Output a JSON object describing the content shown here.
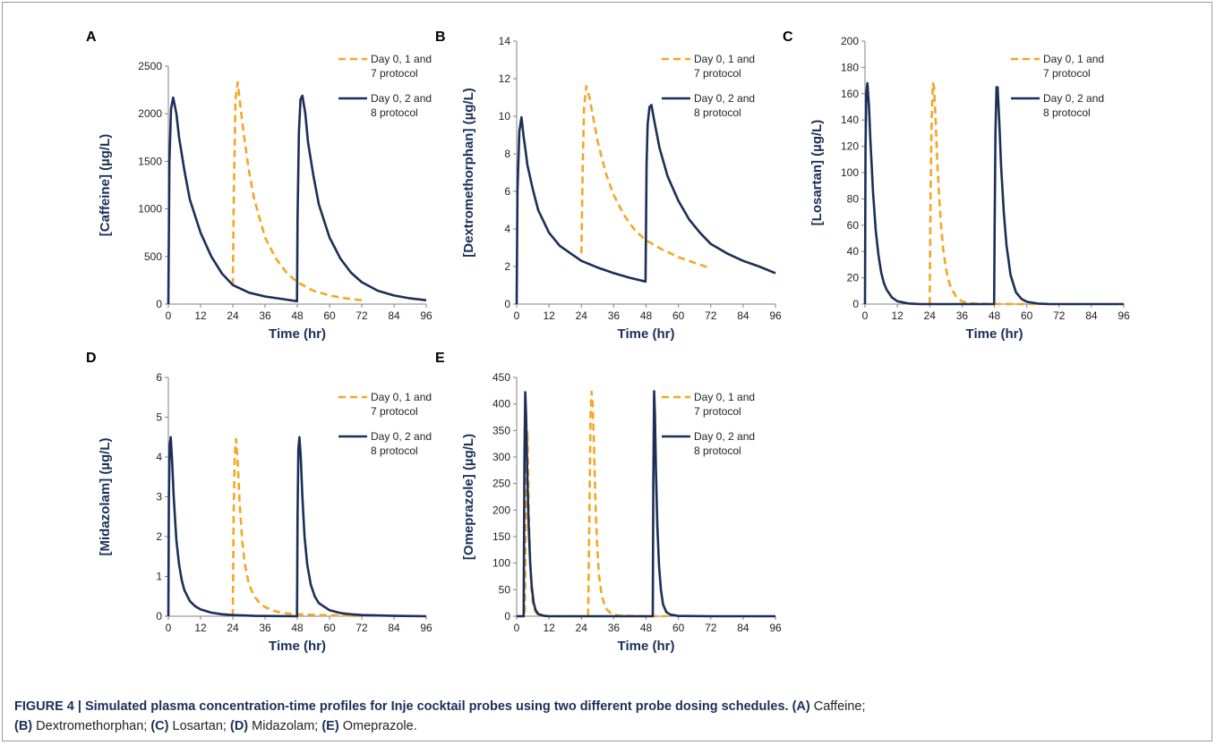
{
  "figure": {
    "caption_title": "FIGURE 4 | Simulated plasma concentration-time profiles for Inje cocktail probes using two different probe dosing schedules.",
    "caption_items": [
      {
        "label": "(A)",
        "text": "Caffeine;"
      },
      {
        "label": "(B)",
        "text": "Dextromethorphan;"
      },
      {
        "label": "(C)",
        "text": "Losartan;"
      },
      {
        "label": "(D)",
        "text": "Midazolam;"
      },
      {
        "label": "(E)",
        "text": "Omeprazole."
      }
    ]
  },
  "colors": {
    "series1": "#f5a623",
    "series2": "#1b2f58",
    "axis": "#808080",
    "text": "#222222"
  },
  "chart_data": [
    {
      "panel": "A",
      "type": "line",
      "xlabel": "Time (hr)",
      "ylabel": "[Caffeine] (µg/L)",
      "xlim": [
        0,
        96
      ],
      "ylim": [
        0,
        2500
      ],
      "xticks": [
        0,
        12,
        24,
        36,
        48,
        60,
        72,
        84,
        96
      ],
      "yticks": [
        0,
        500,
        1000,
        1500,
        2000,
        2500
      ],
      "legend": "top-right",
      "series": [
        {
          "name": "Day 0, 1 and 7 protocol",
          "style": "dashed",
          "x": [
            24,
            24.4,
            25,
            25.8,
            28,
            30,
            32,
            36,
            40,
            44,
            48,
            54,
            60,
            66,
            72
          ],
          "y": [
            200,
            1200,
            2150,
            2330,
            1800,
            1400,
            1100,
            700,
            480,
            330,
            230,
            140,
            90,
            60,
            40
          ]
        },
        {
          "name": "Day 0, 2 and 8 protocol",
          "style": "solid",
          "x": [
            0,
            0.4,
            1,
            1.8,
            3,
            4,
            6,
            8,
            12,
            16,
            20,
            24,
            30,
            36,
            42,
            47.9,
            48.1,
            48.6,
            49.2,
            49.9,
            51,
            52,
            54,
            56,
            60,
            64,
            68,
            72,
            78,
            84,
            90,
            96
          ],
          "y": [
            0,
            1500,
            2050,
            2170,
            2000,
            1750,
            1400,
            1100,
            750,
            500,
            320,
            200,
            120,
            80,
            55,
            30,
            900,
            1800,
            2150,
            2190,
            2000,
            1700,
            1350,
            1050,
            700,
            480,
            330,
            230,
            140,
            90,
            60,
            40
          ]
        }
      ]
    },
    {
      "panel": "B",
      "type": "line",
      "xlabel": "Time (hr)",
      "ylabel": "[Dextromethorphan] (µg/L)",
      "xlim": [
        0,
        96
      ],
      "ylim": [
        0,
        14
      ],
      "xticks": [
        0,
        12,
        24,
        36,
        48,
        60,
        72,
        84,
        96
      ],
      "yticks": [
        0,
        2,
        4,
        6,
        8,
        10,
        12,
        14
      ],
      "legend": "top-right",
      "series": [
        {
          "name": "Day 0, 1 and 7 protocol",
          "style": "dashed",
          "x": [
            24,
            24.5,
            25,
            25.8,
            27,
            30,
            33,
            36,
            40,
            44,
            48,
            54,
            60,
            66,
            72
          ],
          "y": [
            2.7,
            7.5,
            10.5,
            11.6,
            11.0,
            8.7,
            7.0,
            5.8,
            4.7,
            3.9,
            3.4,
            2.9,
            2.5,
            2.2,
            1.9
          ]
        },
        {
          "name": "Day 0, 2 and 8 protocol",
          "style": "solid",
          "x": [
            0,
            0.3,
            1,
            1.8,
            2.6,
            3.2,
            4,
            6,
            8,
            12,
            16,
            20,
            24,
            30,
            36,
            42,
            47.8,
            48.2,
            48.6,
            49.3,
            50,
            51,
            53,
            56,
            60,
            64,
            68,
            72,
            78,
            84,
            90,
            96
          ],
          "y": [
            0,
            6,
            9.2,
            9.95,
            8.9,
            8.3,
            7.4,
            6.1,
            5.0,
            3.8,
            3.1,
            2.7,
            2.3,
            1.95,
            1.65,
            1.4,
            1.2,
            7.5,
            9.6,
            10.5,
            10.6,
            9.8,
            8.3,
            6.8,
            5.5,
            4.5,
            3.8,
            3.2,
            2.7,
            2.3,
            2.0,
            1.65
          ]
        }
      ]
    },
    {
      "panel": "C",
      "type": "line",
      "xlabel": "Time (hr)",
      "ylabel": "[Losartan] (µg/L)",
      "xlim": [
        0,
        96
      ],
      "ylim": [
        0,
        200
      ],
      "xticks": [
        0,
        12,
        24,
        36,
        48,
        60,
        72,
        84,
        96
      ],
      "yticks": [
        0,
        20,
        40,
        60,
        80,
        100,
        120,
        140,
        160,
        180,
        200
      ],
      "legend": "top-right",
      "series": [
        {
          "name": "Day 0, 1 and 7 protocol",
          "style": "dashed",
          "x": [
            24,
            24.3,
            24.7,
            25.2,
            25.6,
            26.2,
            27,
            28,
            29,
            30,
            31,
            32,
            34,
            36,
            40,
            44,
            48,
            56,
            64
          ],
          "y": [
            0,
            80,
            140,
            168,
            165,
            140,
            100,
            65,
            42,
            27,
            18,
            12,
            5,
            2,
            0.5,
            0.2,
            0.1,
            0,
            0
          ]
        },
        {
          "name": "Day 0, 2 and 8 protocol",
          "style": "solid",
          "x": [
            0,
            0.2,
            0.5,
            0.9,
            1.5,
            2,
            3,
            4,
            5,
            6,
            7,
            8,
            10,
            12,
            16,
            20,
            24,
            36,
            47.9,
            48.1,
            48.4,
            48.8,
            49.2,
            49.8,
            50.5,
            51.5,
            52.5,
            54,
            56,
            58,
            60,
            64,
            68,
            72,
            84,
            96
          ],
          "y": [
            0,
            120,
            160,
            168,
            150,
            125,
            85,
            56,
            37,
            24,
            16,
            11,
            5,
            2.2,
            0.5,
            0.1,
            0,
            0,
            0,
            60,
            130,
            165,
            165,
            140,
            105,
            70,
            45,
            22,
            9,
            4,
            1.8,
            0.4,
            0.1,
            0,
            0,
            0
          ]
        }
      ]
    },
    {
      "panel": "D",
      "type": "line",
      "xlabel": "Time (hr)",
      "ylabel": "[Midazolam] (µg/L)",
      "xlim": [
        0,
        96
      ],
      "ylim": [
        0,
        6
      ],
      "xticks": [
        0,
        12,
        24,
        36,
        48,
        60,
        72,
        84,
        96
      ],
      "yticks": [
        0,
        1,
        2,
        3,
        4,
        5,
        6
      ],
      "legend": "top-right",
      "series": [
        {
          "name": "Day 0, 1 and 7 protocol",
          "style": "dashed",
          "x": [
            24,
            24.3,
            24.7,
            25.2,
            25.8,
            26.5,
            27.5,
            28.5,
            30,
            32,
            34,
            36,
            40,
            44,
            48,
            56,
            64,
            72
          ],
          "y": [
            0,
            2.5,
            4.0,
            4.45,
            3.9,
            2.9,
            1.9,
            1.3,
            0.8,
            0.5,
            0.33,
            0.23,
            0.12,
            0.07,
            0.05,
            0.03,
            0.02,
            0.01
          ]
        },
        {
          "name": "Day 0, 2 and 8 protocol",
          "style": "solid",
          "x": [
            0,
            0.2,
            0.5,
            0.9,
            1.4,
            2,
            3,
            4,
            5,
            6,
            8,
            10,
            12,
            16,
            20,
            24,
            32,
            40,
            47.9,
            48.1,
            48.4,
            48.8,
            49.3,
            49.9,
            50.7,
            51.7,
            53,
            54.5,
            56,
            60,
            64,
            68,
            72,
            84,
            96
          ],
          "y": [
            0,
            3.0,
            4.3,
            4.5,
            3.9,
            3.0,
            1.9,
            1.3,
            0.9,
            0.65,
            0.38,
            0.25,
            0.17,
            0.09,
            0.05,
            0.03,
            0.01,
            0.005,
            0,
            2.5,
            4.2,
            4.5,
            4.0,
            3.0,
            2.0,
            1.3,
            0.8,
            0.5,
            0.33,
            0.15,
            0.08,
            0.05,
            0.03,
            0.01,
            0
          ]
        }
      ]
    },
    {
      "panel": "E",
      "type": "line",
      "xlabel": "Time (hr)",
      "ylabel": "[Omeprazole] (µg/L)",
      "xlim": [
        0,
        96
      ],
      "ylim": [
        0,
        450
      ],
      "xticks": [
        0,
        12,
        24,
        36,
        48,
        60,
        72,
        84,
        96
      ],
      "yticks": [
        0,
        50,
        100,
        150,
        200,
        250,
        300,
        350,
        400,
        450
      ],
      "legend": "top-right",
      "series": [
        {
          "name": "Day 0, 1 and 7 protocol",
          "style": "dashed",
          "x": [
            0,
            3,
            3.5,
            4,
            4.5,
            5,
            5.5,
            6,
            7,
            8,
            9,
            12,
            26.5,
            27,
            27.4,
            27.8,
            28.2,
            28.7,
            29.2,
            29.8,
            30.5,
            31.5,
            33,
            35,
            38,
            48,
            56
          ],
          "y": [
            0,
            0,
            250,
            350,
            200,
            100,
            50,
            25,
            8,
            3,
            1,
            0,
            0,
            200,
            380,
            423,
            400,
            320,
            220,
            140,
            80,
            40,
            15,
            5,
            1,
            0,
            0
          ]
        },
        {
          "name": "Day 0, 2 and 8 protocol",
          "style": "solid",
          "x": [
            0,
            2.6,
            2.9,
            3.2,
            3.5,
            3.9,
            4.4,
            5,
            5.6,
            6.3,
            7,
            8,
            10,
            12,
            24,
            36,
            48,
            50.5,
            50.7,
            51,
            51.3,
            51.7,
            52.2,
            52.8,
            53.5,
            54.3,
            55.5,
            57,
            60,
            72,
            84,
            96
          ],
          "y": [
            0,
            0,
            300,
            422,
            380,
            280,
            180,
            100,
            55,
            25,
            12,
            4,
            1,
            0,
            0,
            0,
            0,
            0,
            250,
            424,
            380,
            270,
            170,
            95,
            50,
            22,
            8,
            3,
            0.5,
            0,
            0,
            0
          ]
        }
      ]
    }
  ]
}
